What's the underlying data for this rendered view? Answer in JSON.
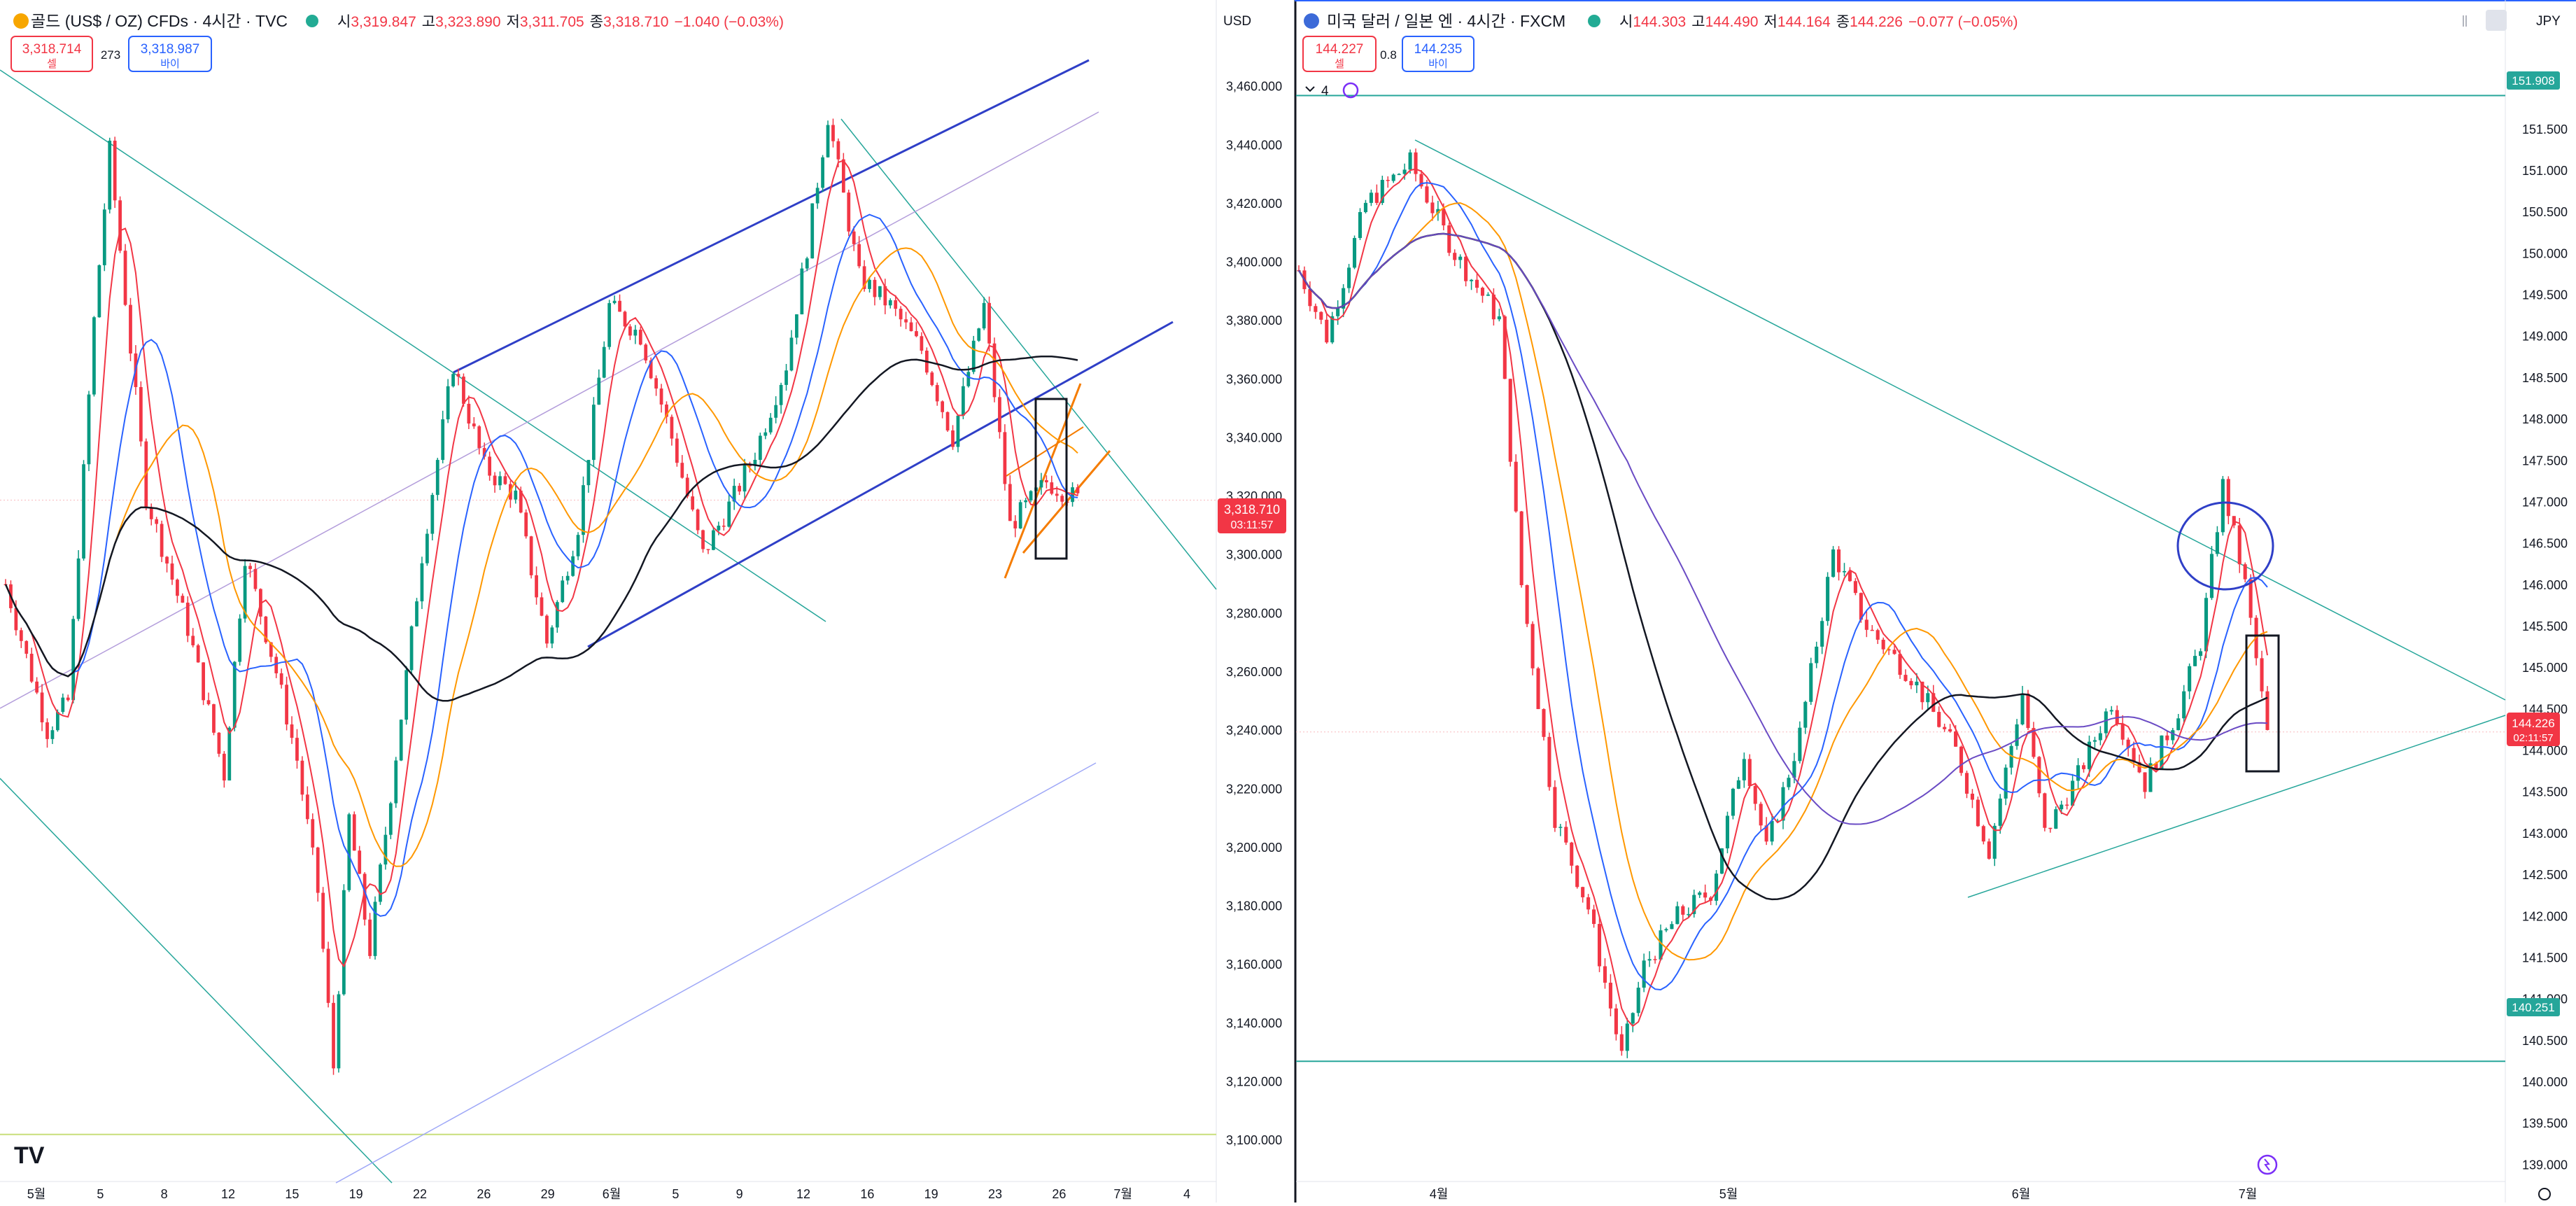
{
  "left": {
    "symbol": {
      "title": "골드 (US$ / OZ) CFDs · 4시간 · TVC",
      "o_label": "시",
      "o": "3,319.847",
      "h_label": "고",
      "h": "3,323.890",
      "l_label": "저",
      "l": "3,311.705",
      "c_label": "종",
      "c": "3,318.710",
      "chg": "−1.040 (−0.03%)"
    },
    "sell": {
      "price": "3,318.714",
      "label": "셀"
    },
    "spread": "273",
    "buy": {
      "price": "3,318.987",
      "label": "바이"
    },
    "currency": "USD",
    "y_ticks": [
      "3,460.000",
      "3,440.000",
      "3,420.000",
      "3,400.000",
      "3,380.000",
      "3,360.000",
      "3,340.000",
      "3,320.000",
      "3,300.000",
      "3,280.000",
      "3,260.000",
      "3,240.000",
      "3,220.000",
      "3,200.000",
      "3,180.000",
      "3,160.000",
      "3,140.000",
      "3,120.000",
      "3,100.000"
    ],
    "x_ticks": [
      "5월",
      "5",
      "8",
      "12",
      "15",
      "19",
      "22",
      "26",
      "29",
      "6월",
      "5",
      "9",
      "12",
      "16",
      "19",
      "23",
      "26",
      "7월",
      "4"
    ],
    "price_tag": {
      "price": "3,318.710",
      "countdown": "03:11:57"
    },
    "logo": "TV"
  },
  "right": {
    "symbol": {
      "title": "미국 달러 / 일본 엔 · 4시간 · FXCM",
      "o_label": "시",
      "o": "144.303",
      "h_label": "고",
      "h": "144.490",
      "l_label": "저",
      "l": "144.164",
      "c_label": "종",
      "c": "144.226",
      "chg": "−0.077 (−0.05%)"
    },
    "sell": {
      "price": "144.227",
      "label": "셀"
    },
    "spread": "0.8",
    "buy": {
      "price": "144.235",
      "label": "바이"
    },
    "indicator_count": "4",
    "currency": "JPY",
    "y_ticks": [
      "151.500",
      "151.000",
      "150.500",
      "150.000",
      "149.500",
      "149.000",
      "148.500",
      "148.000",
      "147.500",
      "147.000",
      "146.500",
      "146.000",
      "145.500",
      "145.000",
      "144.500",
      "144.000",
      "143.500",
      "143.000",
      "142.500",
      "142.000",
      "141.500",
      "141.000",
      "140.500",
      "140.000",
      "139.500",
      "139.000"
    ],
    "x_ticks": [
      "4월",
      "5월",
      "6월",
      "7월"
    ],
    "level_high": "151.908",
    "level_low": "140.251",
    "price_tag": {
      "price": "144.226",
      "countdown": "02:11:57"
    }
  },
  "colors": {
    "up": "#089981",
    "down": "#f23645",
    "accent": "#2962ff",
    "trend": "#26a69a",
    "channel": "#2f3fc7",
    "orange": "#f57c00"
  },
  "chart_data": [
    {
      "type": "candlestick",
      "title": "골드 (US$ / OZ) CFDs · 4시간 · TVC",
      "ylabel": "USD",
      "ylim": [
        3095,
        3480
      ],
      "x_range": [
        "5월",
        "4"
      ],
      "grid": false,
      "path": [
        [
          0,
          3290
        ],
        [
          8,
          3240
        ],
        [
          12,
          3250
        ],
        [
          17,
          3380
        ],
        [
          20,
          3438
        ],
        [
          27,
          3320
        ],
        [
          35,
          3275
        ],
        [
          42,
          3225
        ],
        [
          46,
          3300
        ],
        [
          52,
          3260
        ],
        [
          56,
          3230
        ],
        [
          60,
          3185
        ],
        [
          63,
          3125
        ],
        [
          66,
          3210
        ],
        [
          70,
          3165
        ],
        [
          76,
          3245
        ],
        [
          80,
          3300
        ],
        [
          86,
          3365
        ],
        [
          92,
          3330
        ],
        [
          98,
          3320
        ],
        [
          104,
          3270
        ],
        [
          110,
          3310
        ],
        [
          116,
          3385
        ],
        [
          122,
          3375
        ],
        [
          128,
          3340
        ],
        [
          134,
          3300
        ],
        [
          140,
          3320
        ],
        [
          144,
          3335
        ],
        [
          150,
          3365
        ],
        [
          154,
          3405
        ],
        [
          158,
          3450
        ],
        [
          164,
          3395
        ],
        [
          170,
          3385
        ],
        [
          176,
          3370
        ],
        [
          182,
          3340
        ],
        [
          188,
          3385
        ],
        [
          193,
          3310
        ],
        [
          200,
          3325
        ],
        [
          206,
          3319
        ]
      ],
      "last_price": 3318.71
    },
    {
      "type": "candlestick",
      "title": "미국 달러 / 일본 엔 · 4시간 · FXCM",
      "ylabel": "JPY",
      "ylim": [
        138.8,
        152.2
      ],
      "x_range": [
        "4월",
        "7월"
      ],
      "grid": false,
      "path": [
        [
          0,
          149.8
        ],
        [
          5,
          149.0
        ],
        [
          12,
          150.6
        ],
        [
          20,
          151.1
        ],
        [
          28,
          150.0
        ],
        [
          36,
          149.2
        ],
        [
          40,
          146.0
        ],
        [
          46,
          143.2
        ],
        [
          52,
          142.1
        ],
        [
          58,
          140.3
        ],
        [
          62,
          141.4
        ],
        [
          68,
          142.0
        ],
        [
          74,
          142.3
        ],
        [
          80,
          144.0
        ],
        [
          84,
          142.8
        ],
        [
          90,
          144.2
        ],
        [
          96,
          146.4
        ],
        [
          102,
          145.5
        ],
        [
          110,
          144.9
        ],
        [
          118,
          144.0
        ],
        [
          124,
          142.8
        ],
        [
          130,
          144.7
        ],
        [
          134,
          143.0
        ],
        [
          140,
          143.7
        ],
        [
          146,
          144.6
        ],
        [
          152,
          143.6
        ],
        [
          158,
          144.5
        ],
        [
          162,
          145.3
        ],
        [
          166,
          147.2
        ],
        [
          170,
          146.0
        ],
        [
          174,
          144.2
        ]
      ],
      "last_price": 144.226,
      "levels": [
        151.908,
        140.251
      ]
    }
  ]
}
